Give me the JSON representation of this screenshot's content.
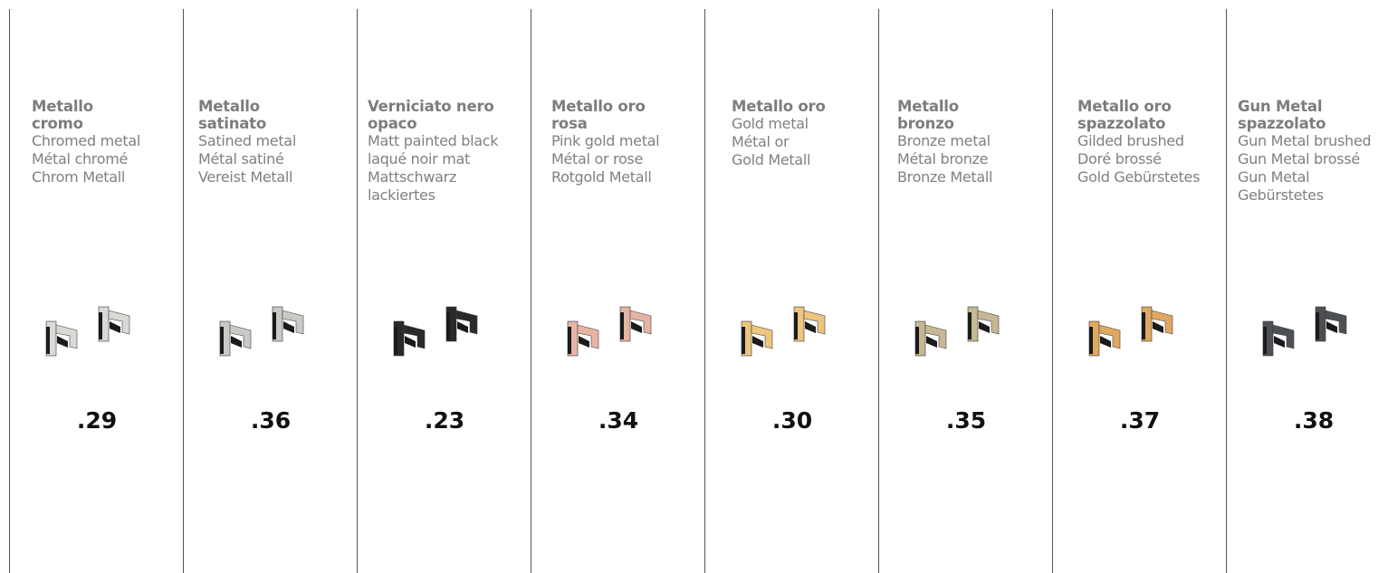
{
  "finishes": [
    {
      "title": [
        "Metallo",
        "cromo"
      ],
      "lines": [
        "Chromed metal",
        "Métal chromé",
        "Chrom Metall"
      ],
      "code": ".29",
      "color": "#d9d9d6"
    },
    {
      "title": [
        "Metallo",
        "satinato"
      ],
      "lines": [
        "Satined metal",
        "Métal satiné",
        "Vereist Metall"
      ],
      "code": ".36",
      "color": "#c9c9c6"
    },
    {
      "title": [
        "Verniciato nero",
        "opaco"
      ],
      "lines": [
        "Matt painted black",
        "laqué noir mat",
        "Mattschwarz",
        "lackiertes"
      ],
      "code": ".23",
      "color": "#2a2a2a"
    },
    {
      "title": [
        "Metallo oro",
        "rosa"
      ],
      "lines": [
        "Pink gold metal",
        "Métal or rose",
        "Rotgold Metall"
      ],
      "code": ".34",
      "color": "#e6b4a4"
    },
    {
      "title": [
        "Metallo oro"
      ],
      "lines": [
        "Gold metal",
        "Métal or",
        "Gold Metall"
      ],
      "code": ".30",
      "color": "#ecc57e"
    },
    {
      "title": [
        "Metallo",
        "bronzo"
      ],
      "lines": [
        "Bronze metal",
        "Métal bronze",
        "Bronze Metall"
      ],
      "code": ".35",
      "color": "#c6b795"
    },
    {
      "title": [
        "Metallo oro",
        "spazzolato"
      ],
      "lines": [
        "Gilded brushed",
        "Doré brossé",
        "Gold Gebürstetes"
      ],
      "code": ".37",
      "color": "#dfa860"
    },
    {
      "title": [
        "Gun Metal",
        "spazzolato"
      ],
      "lines": [
        "Gun Metal brushed",
        "Gun Metal brossé",
        "Gun Metal",
        "Gebürstetes"
      ],
      "code": ".38",
      "color": "#4c4f53"
    }
  ]
}
